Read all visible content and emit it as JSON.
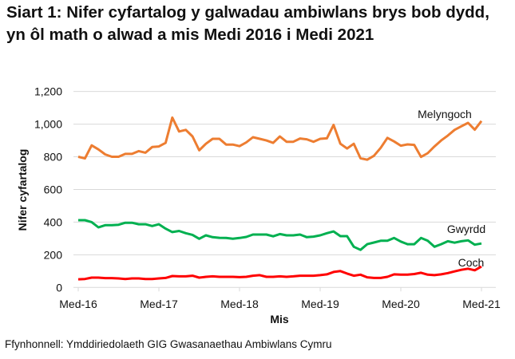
{
  "chart_data": {
    "type": "line",
    "title": "Siart 1: Nifer cyfartalog y galwadau ambiwlans brys bob dydd, yn ôl math o alwad a mis Medi 2016 i Medi 2021",
    "xlabel": "Mis",
    "ylabel": "Nifer cyfartalog",
    "ylim": [
      0,
      1200
    ],
    "yticks": [
      "0",
      "200",
      "400",
      "600",
      "800",
      "1,000",
      "1,200"
    ],
    "xticks": [
      "Med-16",
      "Med-17",
      "Med-18",
      "Med-19",
      "Med-20",
      "Med-21"
    ],
    "grid": true,
    "x_start": "2016-09",
    "x_end": "2021-09",
    "series": [
      {
        "name": "Melyngoch",
        "color": "#ED7D31",
        "values": [
          800,
          790,
          870,
          845,
          815,
          800,
          800,
          818,
          818,
          835,
          825,
          860,
          863,
          885,
          1040,
          955,
          965,
          925,
          840,
          880,
          910,
          910,
          875,
          875,
          865,
          888,
          920,
          910,
          900,
          885,
          925,
          892,
          892,
          912,
          907,
          892,
          910,
          913,
          995,
          880,
          851,
          880,
          791,
          782,
          806,
          855,
          916,
          894,
          868,
          876,
          873,
          799,
          822,
          863,
          900,
          930,
          965,
          987,
          1008,
          966,
          1019
        ]
      },
      {
        "name": "Gwyrdd",
        "color": "#00B050",
        "values": [
          412,
          412,
          400,
          368,
          381,
          381,
          384,
          396,
          396,
          387,
          387,
          376,
          387,
          360,
          339,
          346,
          332,
          322,
          298,
          319,
          308,
          304,
          303,
          298,
          303,
          309,
          324,
          324,
          324,
          313,
          327,
          319,
          319,
          324,
          308,
          311,
          319,
          332,
          343,
          314,
          314,
          249,
          230,
          265,
          275,
          286,
          286,
          303,
          281,
          265,
          265,
          303,
          286,
          249,
          265,
          283,
          274,
          283,
          288,
          262,
          269
        ]
      },
      {
        "name": "Coch",
        "color": "#FF0000",
        "values": [
          50,
          52,
          60,
          60,
          57,
          57,
          55,
          52,
          55,
          55,
          52,
          52,
          55,
          58,
          70,
          68,
          68,
          72,
          60,
          65,
          68,
          65,
          65,
          65,
          63,
          65,
          72,
          75,
          65,
          65,
          68,
          65,
          68,
          72,
          72,
          72,
          75,
          80,
          95,
          100,
          85,
          72,
          78,
          62,
          58,
          58,
          65,
          80,
          78,
          78,
          82,
          90,
          78,
          75,
          80,
          88,
          98,
          108,
          115,
          105,
          128
        ]
      }
    ]
  },
  "source": "Ffynhonnell: Ymddiriedolaeth GIG Gwasanaethau Ambiwlans Cymru"
}
